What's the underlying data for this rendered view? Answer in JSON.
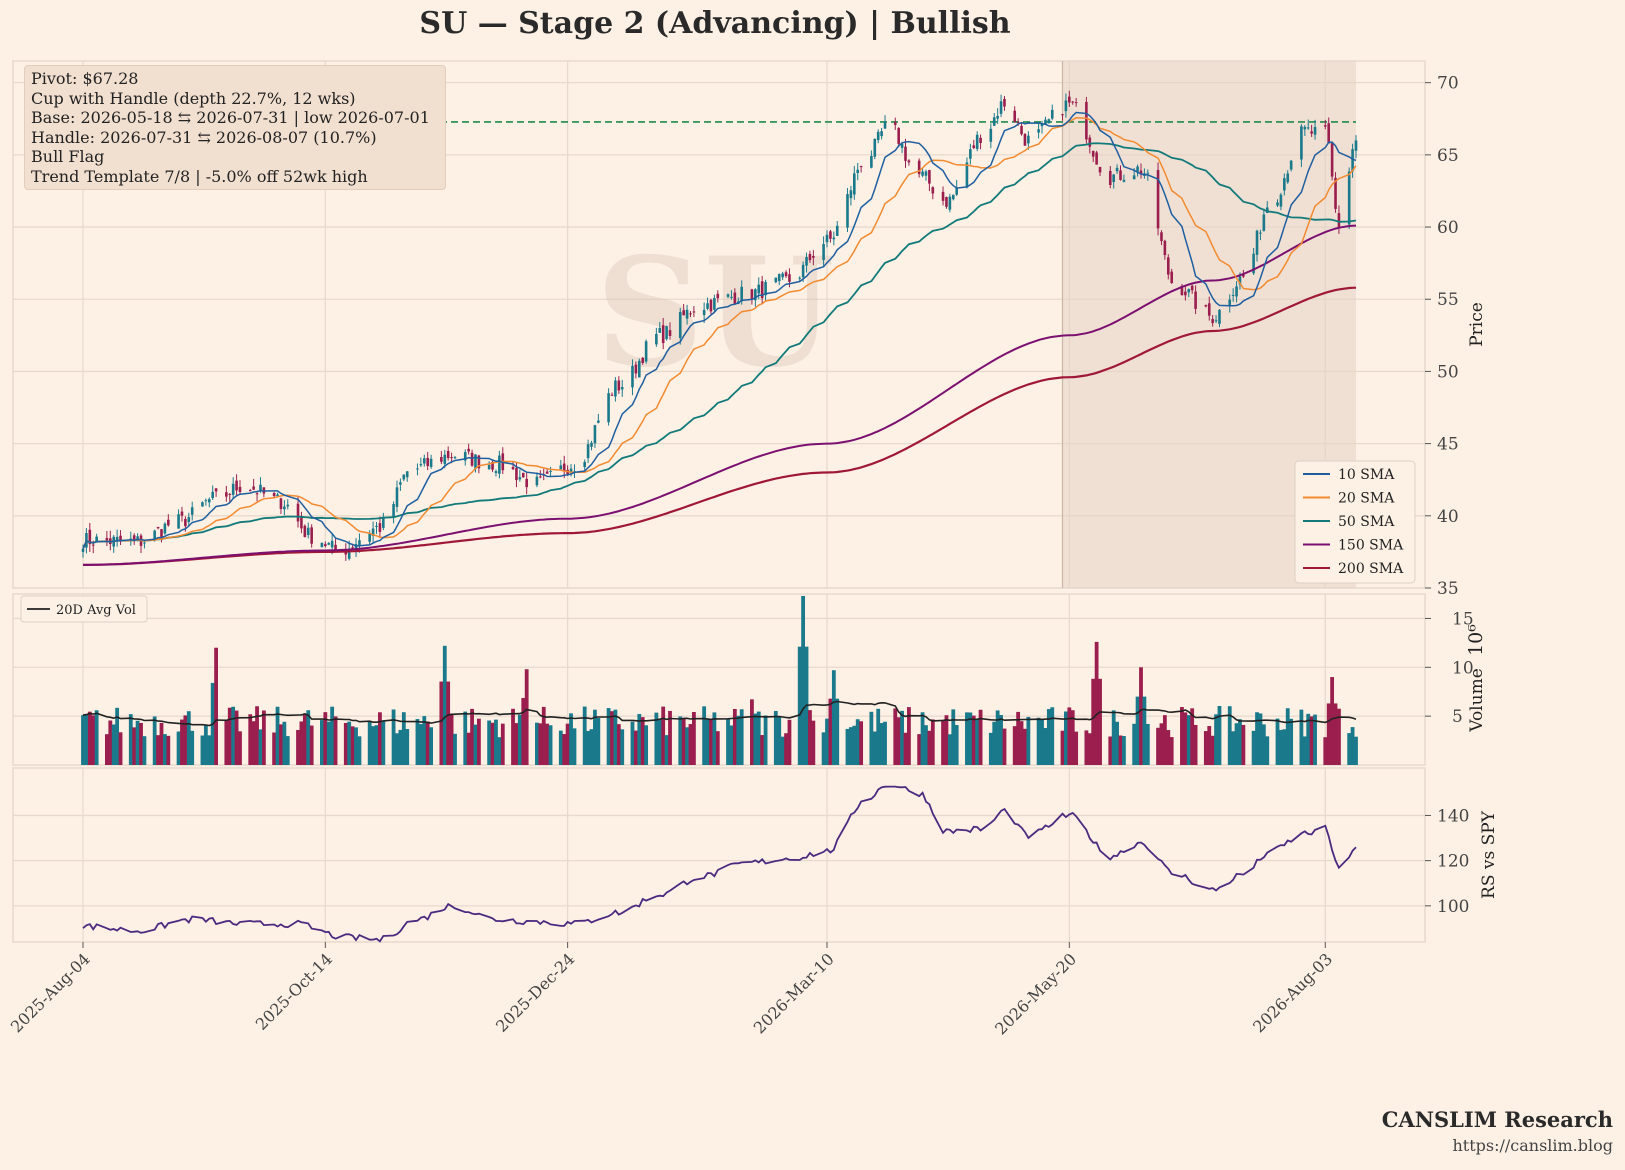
{
  "title": "SU  —  Stage 2 (Advancing)  |  Bullish",
  "watermark": "SU",
  "info_box": [
    "Pivot: $67.28",
    "Cup with Handle  (depth 22.7%, 12 wks)",
    "Base: 2026-05-18 ⇆ 2026-07-31  |  low 2026-07-01",
    "Handle: 2026-07-31 ⇆ 2026-08-07 (10.7%)",
    "Bull Flag",
    "Trend Template 7/8  |  -5.0% off 52wk high"
  ],
  "branding": {
    "name": "CANSLIM Research",
    "url": "https://canslim.blog"
  },
  "colors": {
    "background": "#fdf1e6",
    "grid": "#e8d9cd",
    "up": "#1a7a8c",
    "down": "#9b1f4e",
    "sma10": "#1f5fa0",
    "sma20": "#f28a30",
    "sma50": "#127a7a",
    "sma150": "#7b1070",
    "sma200": "#a01838",
    "pivot": "#1f8a4a",
    "rs": "#4b2a80",
    "avgvol": "#222222",
    "base_shade": "#e6d2c4"
  },
  "chart_data": [
    {
      "type": "candlestick",
      "panel": "price",
      "ylabel": "Price",
      "ylim": [
        35,
        71.5
      ],
      "yticks": [
        35,
        40,
        45,
        50,
        55,
        60,
        65,
        70
      ],
      "x_tick_labels": [
        "2025-Aug-04",
        "2025-Oct-14",
        "2025-Dec-24",
        "2026-Mar-10",
        "2026-May-20",
        "2026-Aug-03"
      ],
      "x_tick_dates": [
        "2025-08-04",
        "2025-10-14",
        "2025-12-24",
        "2026-03-10",
        "2026-05-20",
        "2026-08-03"
      ],
      "x_range": [
        "2025-08-04",
        "2026-08-12"
      ],
      "pivot": 67.28,
      "base_range": [
        "2026-05-18",
        "2026-08-12"
      ],
      "close_anchors": [
        [
          "2025-08-04",
          38.3
        ],
        [
          "2025-08-20",
          38.2
        ],
        [
          "2025-09-01",
          39.6
        ],
        [
          "2025-09-12",
          41.2
        ],
        [
          "2025-09-20",
          42.1
        ],
        [
          "2025-10-01",
          41.0
        ],
        [
          "2025-10-10",
          38.6
        ],
        [
          "2025-10-18",
          37.6
        ],
        [
          "2025-10-30",
          39.2
        ],
        [
          "2025-11-08",
          43.2
        ],
        [
          "2025-11-20",
          44.2
        ],
        [
          "2025-12-03",
          43.6
        ],
        [
          "2025-12-15",
          42.2
        ],
        [
          "2025-12-26",
          43.6
        ],
        [
          "2026-01-08",
          49.0
        ],
        [
          "2026-01-20",
          52.5
        ],
        [
          "2026-02-01",
          54.6
        ],
        [
          "2026-02-15",
          55.4
        ],
        [
          "2026-02-27",
          56.3
        ],
        [
          "2026-03-10",
          59.0
        ],
        [
          "2026-03-22",
          65.0
        ],
        [
          "2026-03-28",
          67.0
        ],
        [
          "2026-04-06",
          63.6
        ],
        [
          "2026-04-14",
          61.8
        ],
        [
          "2026-04-25",
          66.5
        ],
        [
          "2026-05-01",
          68.6
        ],
        [
          "2026-05-08",
          66.0
        ],
        [
          "2026-05-20",
          68.5
        ],
        [
          "2026-06-01",
          63.5
        ],
        [
          "2026-06-10",
          64.0
        ],
        [
          "2026-06-20",
          56.0
        ],
        [
          "2026-07-01",
          53.8
        ],
        [
          "2026-07-10",
          56.5
        ],
        [
          "2026-07-18",
          61.8
        ],
        [
          "2026-07-28",
          66.6
        ],
        [
          "2026-08-03",
          66.4
        ],
        [
          "2026-08-07",
          60.2
        ],
        [
          "2026-08-12",
          66.0
        ]
      ],
      "series": [
        {
          "name": "10 SMA"
        },
        {
          "name": "20 SMA"
        },
        {
          "name": "50 SMA"
        },
        {
          "name": "150 SMA"
        },
        {
          "name": "200 SMA"
        }
      ],
      "sma150_anchors": [
        [
          "2025-08-04",
          36.6
        ],
        [
          "2025-10-14",
          37.6
        ],
        [
          "2025-12-24",
          39.8
        ],
        [
          "2026-03-10",
          45.0
        ],
        [
          "2026-05-20",
          52.5
        ],
        [
          "2026-07-01",
          56.3
        ],
        [
          "2026-08-12",
          60.1
        ]
      ],
      "sma200_anchors": [
        [
          "2025-08-04",
          36.6
        ],
        [
          "2025-10-14",
          37.5
        ],
        [
          "2025-12-24",
          38.8
        ],
        [
          "2026-03-10",
          43.0
        ],
        [
          "2026-05-20",
          49.6
        ],
        [
          "2026-07-01",
          52.8
        ],
        [
          "2026-08-12",
          55.8
        ]
      ],
      "legend": "lower-right"
    },
    {
      "type": "bar",
      "panel": "volume",
      "ylabel": "Volume",
      "unit_label": "10⁶",
      "yticks": [
        5,
        10,
        15
      ],
      "ylim": [
        0,
        17.5
      ],
      "series": [
        {
          "name": "20D Avg Vol"
        }
      ],
      "volume_base": 3.8,
      "spikes": [
        [
          "2025-09-12",
          12.0
        ],
        [
          "2025-11-18",
          12.2
        ],
        [
          "2025-12-12",
          9.8
        ],
        [
          "2026-02-15",
          9.6
        ],
        [
          "2026-03-03",
          17.3
        ],
        [
          "2026-03-12",
          9.7
        ],
        [
          "2026-05-28",
          12.6
        ],
        [
          "2026-06-10",
          10.0
        ],
        [
          "2026-08-05",
          9.0
        ]
      ],
      "legend": "upper-left"
    },
    {
      "type": "line",
      "panel": "rs",
      "ylabel": "RS vs SPY",
      "yticks": [
        100,
        120,
        140
      ],
      "ylim": [
        84,
        161
      ],
      "rs_anchors": [
        [
          "2025-08-04",
          91.0
        ],
        [
          "2025-08-20",
          89.0
        ],
        [
          "2025-09-05",
          94.0
        ],
        [
          "2025-09-20",
          92.0
        ],
        [
          "2025-10-05",
          92.0
        ],
        [
          "2025-10-20",
          86.0
        ],
        [
          "2025-10-30",
          85.0
        ],
        [
          "2025-11-10",
          94.0
        ],
        [
          "2025-11-20",
          100.0
        ],
        [
          "2025-12-03",
          94.0
        ],
        [
          "2025-12-15",
          93.0
        ],
        [
          "2025-12-26",
          92.0
        ],
        [
          "2026-01-08",
          97.0
        ],
        [
          "2026-01-20",
          105.0
        ],
        [
          "2026-02-01",
          113.0
        ],
        [
          "2026-02-15",
          119.0
        ],
        [
          "2026-02-27",
          121.0
        ],
        [
          "2026-03-10",
          124.0
        ],
        [
          "2026-03-22",
          148.0
        ],
        [
          "2026-03-28",
          154.0
        ],
        [
          "2026-04-06",
          150.0
        ],
        [
          "2026-04-14",
          133.0
        ],
        [
          "2026-04-25",
          134.0
        ],
        [
          "2026-05-01",
          142.0
        ],
        [
          "2026-05-08",
          131.0
        ],
        [
          "2026-05-20",
          140.0
        ],
        [
          "2026-06-01",
          122.0
        ],
        [
          "2026-06-10",
          128.0
        ],
        [
          "2026-06-20",
          114.0
        ],
        [
          "2026-07-01",
          107.0
        ],
        [
          "2026-07-10",
          114.0
        ],
        [
          "2026-07-18",
          124.0
        ],
        [
          "2026-07-28",
          132.0
        ],
        [
          "2026-08-03",
          134.0
        ],
        [
          "2026-08-07",
          116.0
        ],
        [
          "2026-08-12",
          126.0
        ]
      ]
    }
  ]
}
